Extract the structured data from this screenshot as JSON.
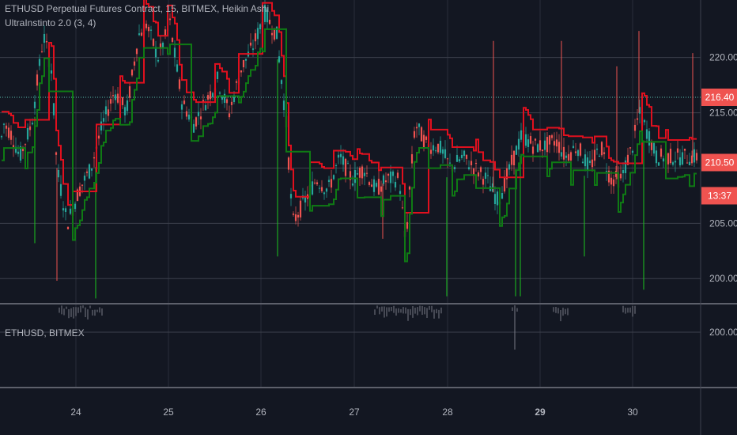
{
  "chart_title": "ETHUSD Perpetual Futures Contract, 15, BITMEX, Heikin Ashi",
  "indicator_label": "UltraInstinto 2.0 (3, 4)",
  "sub_pane_label": "ETHUSD, BITMEX",
  "colors": {
    "background": "#131722",
    "grid": "#2a2e39",
    "candle_up": "#26a69a",
    "candle_down": "#ef5350",
    "line_red": "#e0101e",
    "line_green": "#0f7a14",
    "spike_green": "#1bc41f",
    "badge": "#ef5350",
    "dotted": "#5bbfb0",
    "sub_candle": "#787b86"
  },
  "price_badges": {
    "current_high": "216.40",
    "current": "210.50",
    "countdown": "13:37"
  },
  "chart_data": {
    "type": "candlestick",
    "x_ticks": [
      "24",
      "25",
      "26",
      "27",
      "28",
      "29",
      "30"
    ],
    "y_ticks": [
      "220.00",
      "215.00",
      "210.00",
      "205.00",
      "200.00"
    ],
    "ylim": [
      197.8,
      225.2
    ],
    "dotted_level": 216.4,
    "sub_pane": {
      "y_ticks": [
        "200.00"
      ]
    },
    "series": [
      {
        "name": "",
        "anchors": [
          [
            0,
            212
          ],
          [
            5,
            214
          ],
          [
            15,
            213
          ],
          [
            25,
            211
          ],
          [
            40,
            214
          ],
          [
            55,
            222
          ],
          [
            65,
            219
          ],
          [
            72,
            210
          ],
          [
            85,
            205
          ],
          [
            100,
            208
          ],
          [
            115,
            210
          ],
          [
            130,
            214
          ],
          [
            145,
            217
          ],
          [
            160,
            215
          ],
          [
            175,
            222
          ],
          [
            185,
            223
          ],
          [
            200,
            220
          ],
          [
            215,
            223
          ],
          [
            230,
            216
          ],
          [
            245,
            214
          ],
          [
            260,
            216
          ],
          [
            275,
            218
          ],
          [
            290,
            215
          ],
          [
            305,
            219
          ],
          [
            320,
            221
          ],
          [
            335,
            224
          ],
          [
            350,
            222
          ],
          [
            362,
            214
          ],
          [
            370,
            205
          ],
          [
            385,
            207
          ],
          [
            400,
            209
          ],
          [
            415,
            208
          ],
          [
            430,
            211
          ],
          [
            445,
            209
          ],
          [
            460,
            210
          ],
          [
            475,
            208
          ],
          [
            490,
            209
          ],
          [
            505,
            209
          ],
          [
            513,
            203
          ],
          [
            518,
            208
          ],
          [
            525,
            214
          ],
          [
            540,
            212
          ],
          [
            555,
            212
          ],
          [
            570,
            210
          ],
          [
            585,
            211
          ],
          [
            600,
            210
          ],
          [
            615,
            209
          ],
          [
            630,
            207
          ],
          [
            645,
            210
          ],
          [
            660,
            213
          ],
          [
            675,
            212
          ],
          [
            690,
            212
          ],
          [
            703,
            212.5
          ],
          [
            715,
            211
          ],
          [
            730,
            212
          ],
          [
            745,
            210
          ],
          [
            760,
            212
          ],
          [
            772,
            209
          ],
          [
            785,
            209
          ],
          [
            800,
            212
          ],
          [
            808,
            215
          ],
          [
            820,
            213
          ],
          [
            830,
            211
          ],
          [
            838,
            211
          ]
        ]
      }
    ]
  }
}
